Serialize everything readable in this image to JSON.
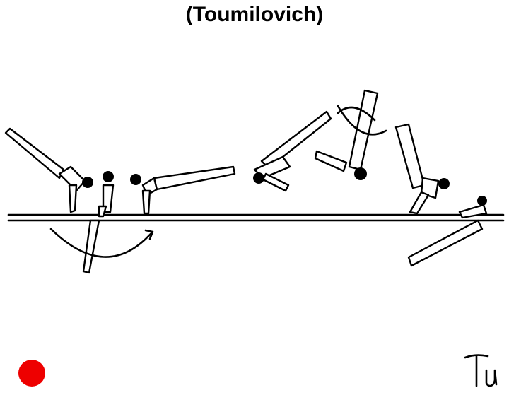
{
  "title": "(Toumilovich)",
  "signature_text": "Tu",
  "colors": {
    "ink": "#000000",
    "background": "#ffffff",
    "status_dot": "#ee0000"
  },
  "icons": {
    "status_dot": "red-circle-icon",
    "signature": "signature-icon"
  }
}
